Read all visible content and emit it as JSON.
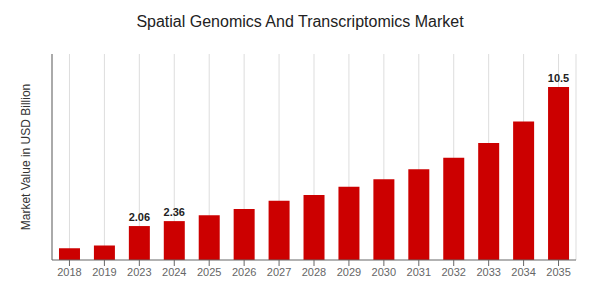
{
  "chart_data": {
    "type": "bar",
    "title": "Spatial Genomics And Transcriptomics Market",
    "ylabel": "Market Value in USD Billion",
    "categories": [
      "2018",
      "2019",
      "2023",
      "2024",
      "2025",
      "2026",
      "2027",
      "2028",
      "2029",
      "2030",
      "2031",
      "2032",
      "2033",
      "2034",
      "2035"
    ],
    "values": [
      0.72,
      0.88,
      2.06,
      2.36,
      2.72,
      3.1,
      3.6,
      3.95,
      4.45,
      4.9,
      5.5,
      6.2,
      7.1,
      8.4,
      10.5
    ],
    "color": "#cc0000",
    "ylim": [
      0,
      12.5
    ],
    "grid": true,
    "tick_labels": "x",
    "annotations": [
      {
        "x": "2023",
        "text": "2.06"
      },
      {
        "x": "2024",
        "text": "2.36"
      },
      {
        "x": "2035",
        "text": "10.5"
      }
    ]
  }
}
